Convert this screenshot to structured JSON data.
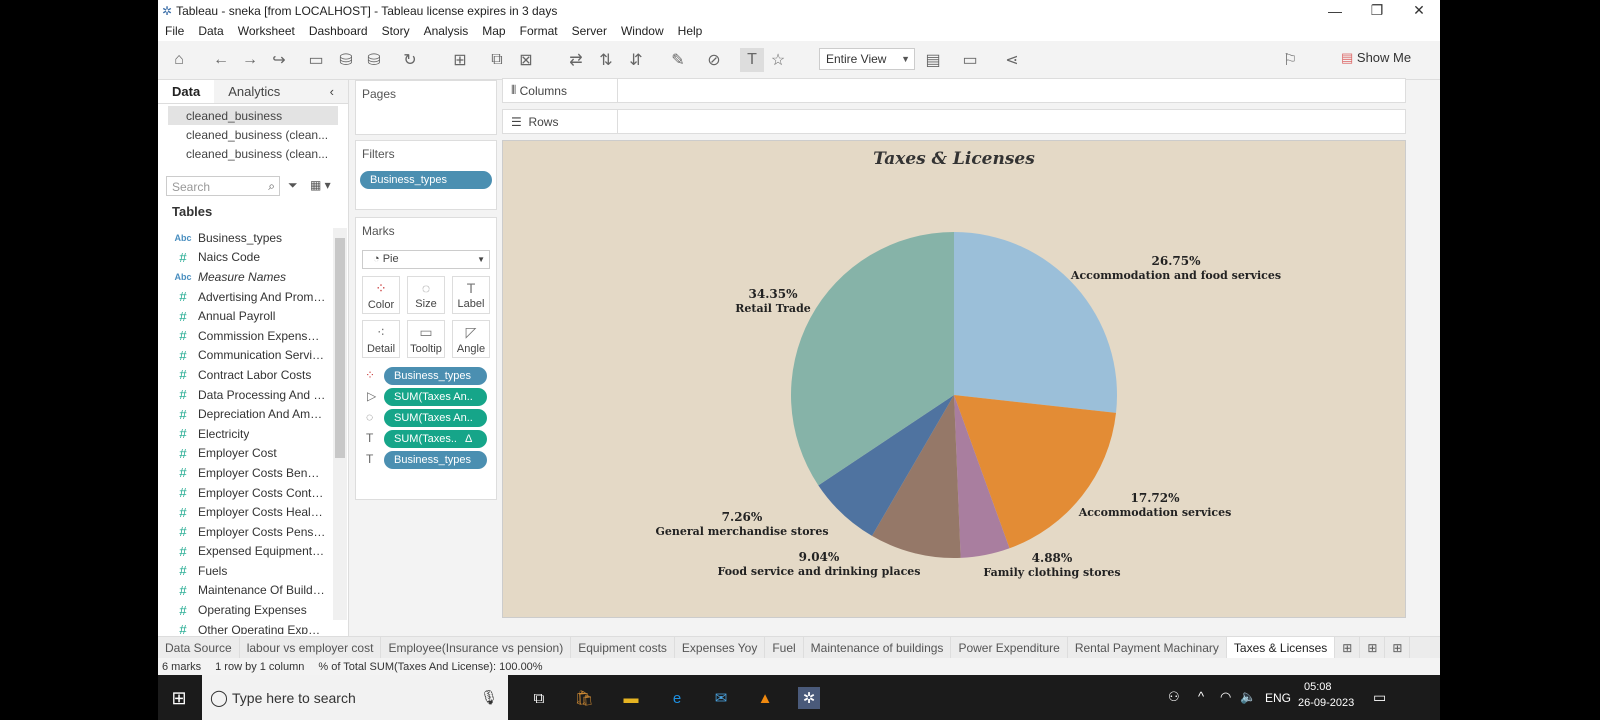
{
  "window": {
    "title": "Tableau - sneka [from LOCALHOST] - Tableau license expires in 3 days"
  },
  "menu": [
    "File",
    "Data",
    "Worksheet",
    "Dashboard",
    "Story",
    "Analysis",
    "Map",
    "Format",
    "Server",
    "Window",
    "Help"
  ],
  "toolbar": {
    "view_mode": "Entire View",
    "show_me": "Show Me"
  },
  "left": {
    "tabs": {
      "data": "Data",
      "analytics": "Analytics"
    },
    "datasources": [
      "cleaned_business",
      "cleaned_business (clean...",
      "cleaned_business (clean..."
    ],
    "search_placeholder": "Search",
    "tables_header": "Tables",
    "fields": [
      {
        "type": "Abc",
        "name": "Business_types"
      },
      {
        "type": "#",
        "name": "Naics Code"
      },
      {
        "type": "Abc",
        "name": "Measure Names",
        "italic": true
      },
      {
        "type": "#",
        "name": "Advertising And Promo..."
      },
      {
        "type": "#",
        "name": "Annual Payroll"
      },
      {
        "type": "#",
        "name": "Commission Expense ..."
      },
      {
        "type": "#",
        "name": "Communication Servic..."
      },
      {
        "type": "#",
        "name": "Contract Labor Costs"
      },
      {
        "type": "#",
        "name": "Data Processing And C..."
      },
      {
        "type": "#",
        "name": "Depreciation And Amo..."
      },
      {
        "type": "#",
        "name": "Electricity"
      },
      {
        "type": "#",
        "name": "Employer Cost"
      },
      {
        "type": "#",
        "name": "Employer Costs Benefits"
      },
      {
        "type": "#",
        "name": "Employer Costs Contri..."
      },
      {
        "type": "#",
        "name": "Employer Costs Health..."
      },
      {
        "type": "#",
        "name": "Employer Costs Pensio..."
      },
      {
        "type": "#",
        "name": "Expensed Equipment A..."
      },
      {
        "type": "#",
        "name": "Fuels"
      },
      {
        "type": "#",
        "name": "Maintenance Of Buildin..."
      },
      {
        "type": "#",
        "name": "Operating Expenses"
      },
      {
        "type": "#",
        "name": "Other Operating Expen..."
      }
    ]
  },
  "cards": {
    "pages": "Pages",
    "filters": "Filters",
    "filter_pill": "Business_types",
    "marks": "Marks",
    "mark_type": "Pie",
    "mark_buttons": {
      "color": "Color",
      "size": "Size",
      "label": "Label",
      "detail": "Detail",
      "tooltip": "Tooltip",
      "angle": "Angle"
    },
    "mark_pills": [
      "Business_types",
      "SUM(Taxes An..",
      "SUM(Taxes An..",
      "SUM(Taxes..",
      "Business_types"
    ],
    "delta": "Δ"
  },
  "shelves": {
    "columns": "Columns",
    "rows": "Rows"
  },
  "view": {
    "title": "Taxes & Licenses"
  },
  "chart_data": {
    "type": "pie",
    "title": "Taxes & Licenses",
    "slices": [
      {
        "label": "Accommodation and food services",
        "value": 26.75,
        "pct": "26.75%",
        "color": "#9bbfd9"
      },
      {
        "label": "Accommodation services",
        "value": 17.72,
        "pct": "17.72%",
        "color": "#e38c35"
      },
      {
        "label": "Family clothing stores",
        "value": 4.88,
        "pct": "4.88%",
        "color": "#a97e9f"
      },
      {
        "label": "Food service and drinking places",
        "value": 9.04,
        "pct": "9.04%",
        "color": "#957868"
      },
      {
        "label": "General merchandise stores",
        "value": 7.26,
        "pct": "7.26%",
        "color": "#4f73a0"
      },
      {
        "label": "Retail Trade",
        "value": 34.35,
        "pct": "34.35%",
        "color": "#86b3a8"
      }
    ]
  },
  "sheets": [
    "Data Source",
    "labour vs employer cost",
    "Employee(Insurance vs pension)",
    "Equipment costs",
    "Expenses Yoy",
    "Fuel",
    "Maintenance of buildings",
    "Power Expenditure",
    "Rental Payment Machinary",
    "Taxes & Licenses"
  ],
  "status": {
    "marks": "6 marks",
    "dims": "1 row by 1 column",
    "pct": "% of Total SUM(Taxes And License): 100.00%"
  },
  "taskbar": {
    "search": "Type here to search",
    "lang": "ENG",
    "time": "05:08",
    "date": "26-09-2023"
  }
}
